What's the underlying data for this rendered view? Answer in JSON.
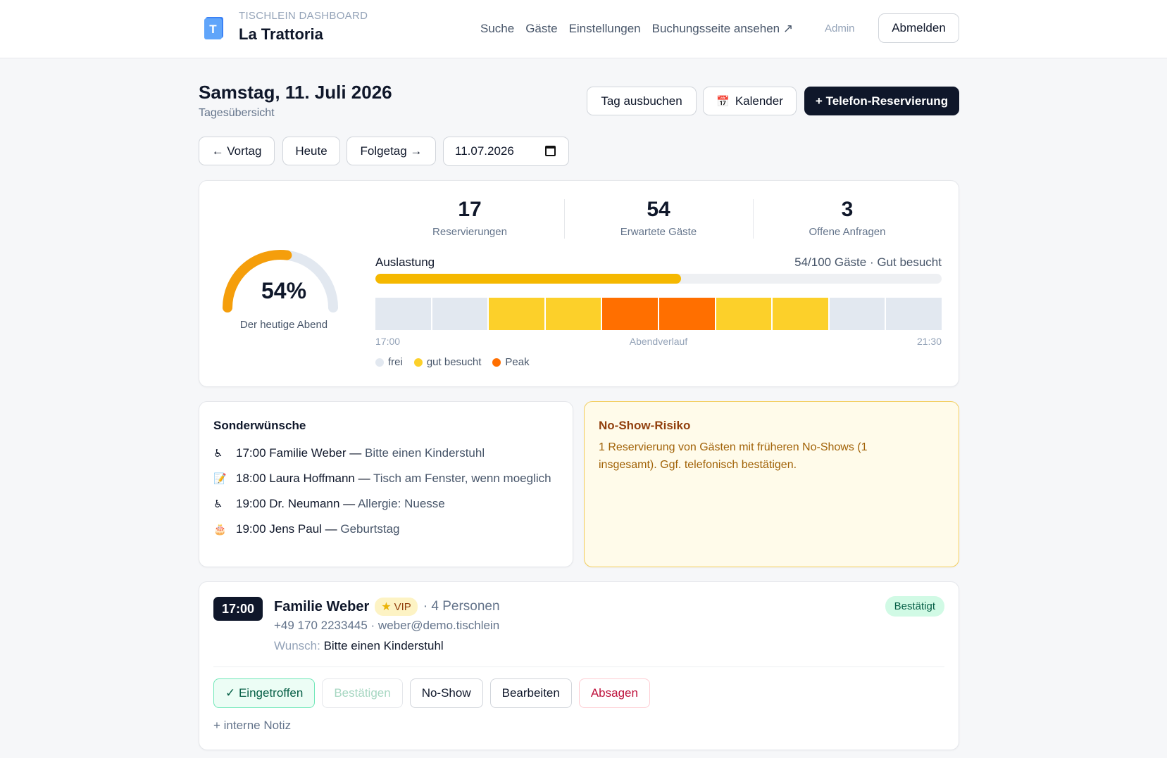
{
  "header": {
    "kicker": "TISCHLEIN DASHBOARD",
    "restaurant": "La Trattoria",
    "logo_letter": "T",
    "nav": [
      "Suche",
      "Gäste",
      "Einstellungen",
      "Buchungsseite ansehen ↗"
    ],
    "admin": "Admin",
    "logout": "Abmelden"
  },
  "page": {
    "title": "Samstag, 11. Juli 2026",
    "subtitle": "Tagesübersicht",
    "btn_book_day": "Tag ausbuchen",
    "btn_calendar": "Kalender",
    "btn_phone": "+ Telefon-Reservierung",
    "btn_prev": "← Vortag",
    "btn_today": "Heute",
    "btn_next": "Folgetag →",
    "date_value": "11.07.2026"
  },
  "stats": {
    "gauge_value": "54%",
    "gauge_fraction": 0.54,
    "gauge_label": "Der heutige Abend",
    "kpis": [
      {
        "value": "17",
        "label": "Reservierungen"
      },
      {
        "value": "54",
        "label": "Erwartete Gäste"
      },
      {
        "value": "3",
        "label": "Offene Anfragen"
      }
    ],
    "util_label": "Auslastung",
    "util_summary": "54/100 Gäste · Gut besucht",
    "util_fraction": 0.54,
    "timeline": [
      "frei",
      "frei",
      "gut",
      "gut",
      "peak",
      "peak",
      "gut",
      "gut",
      "frei",
      "frei"
    ],
    "axis_start": "17:00",
    "axis_center": "Abendverlauf",
    "axis_end": "21:30",
    "legend": [
      {
        "label": "frei",
        "color": "#e2e8f0"
      },
      {
        "label": "gut besucht",
        "color": "#fcd02a"
      },
      {
        "label": "Peak",
        "color": "#ff6f00"
      }
    ]
  },
  "requests": {
    "title": "Sonderwünsche",
    "items": [
      {
        "icon": "♿",
        "icon_name": "wheelchair-icon",
        "main": "17:00 Familie Weber —",
        "note": " Bitte einen Kinderstuhl"
      },
      {
        "icon": "📝",
        "icon_name": "memo-icon",
        "main": "18:00 Laura Hoffmann —",
        "note": " Tisch am Fenster, wenn moeglich"
      },
      {
        "icon": "♿",
        "icon_name": "wheelchair-icon",
        "main": "19:00 Dr. Neumann —",
        "note": " Allergie: Nuesse"
      },
      {
        "icon": "🎂",
        "icon_name": "birthday-cake-icon",
        "main": "19:00 Jens Paul —",
        "note": " Geburtstag"
      }
    ]
  },
  "noshow": {
    "title": "No-Show-Risiko",
    "text": "1 Reservierung von Gästen mit früheren No-Shows (1 insgesamt). Ggf. telefonisch bestätigen."
  },
  "reservation": {
    "time": "17:00",
    "name": "Familie Weber",
    "vip": "VIP",
    "persons": "· 4 Personen",
    "contact": "+49 170 2233445 · weber@demo.tischlein",
    "wish_key": "Wunsch:",
    "wish_value": "Bitte einen Kinderstuhl",
    "status": "Bestätigt",
    "actions": {
      "arrived": "✓ Eingetroffen",
      "confirm": "Bestätigen",
      "noshow": "No-Show",
      "edit": "Bearbeiten",
      "cancel": "Absagen"
    },
    "note_link": "+ interne Notiz"
  },
  "colors": {
    "slot_frei": "#e2e8f0",
    "slot_gut": "#fcd02a",
    "slot_peak": "#ff6f00",
    "gauge_fill": "#f59e0b",
    "gauge_track": "#e2e8f0"
  }
}
